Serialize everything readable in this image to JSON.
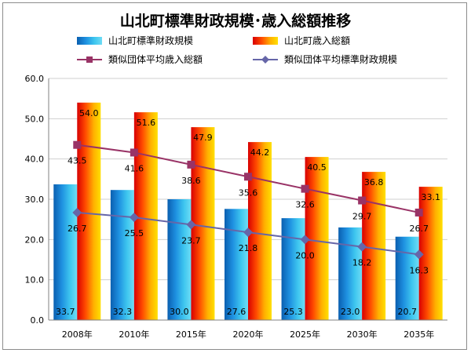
{
  "chart_data": {
    "type": "bar",
    "title": "山北町標準財政規模･歳入総額推移",
    "categories": [
      "2008年",
      "2010年",
      "2015年",
      "2020年",
      "2025年",
      "2030年",
      "2035年"
    ],
    "series": [
      {
        "name": "山北町標準財政規模",
        "kind": "bar",
        "values": [
          33.7,
          32.3,
          30.0,
          27.6,
          25.3,
          23.0,
          20.7
        ],
        "color": "#1e90d8"
      },
      {
        "name": "山北町歳入総額",
        "kind": "bar",
        "values": [
          54.0,
          51.6,
          47.9,
          44.2,
          40.5,
          36.8,
          33.1
        ],
        "color": "#ff6a00"
      },
      {
        "name": "類似団体平均歳入総額",
        "kind": "line",
        "values": [
          43.5,
          41.6,
          38.6,
          35.6,
          32.6,
          29.7,
          26.7
        ],
        "color": "#993366",
        "marker": "square"
      },
      {
        "name": "類似団体平均標準財政規模",
        "kind": "line",
        "values": [
          26.7,
          25.5,
          23.7,
          21.8,
          20.0,
          18.2,
          16.3
        ],
        "color": "#6666a8",
        "marker": "diamond"
      }
    ],
    "ylim": [
      0,
      60
    ],
    "yticks": [
      "0.0",
      "10.0",
      "20.0",
      "30.0",
      "40.0",
      "50.0",
      "60.0"
    ],
    "grid": true,
    "legend_position": "top"
  }
}
